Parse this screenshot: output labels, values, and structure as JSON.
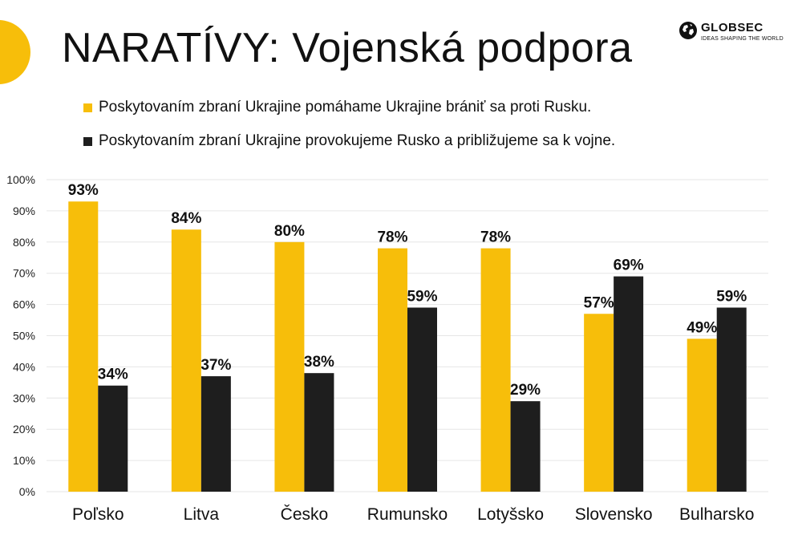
{
  "title": "NARATÍVY: Vojenská podpora",
  "logo": {
    "brand": "GLOBSEC",
    "tagline": "IDEAS SHAPING THE WORLD",
    "icon": "globe-icon"
  },
  "colors": {
    "yellow": "#F7BE0A",
    "black": "#1E1E1E",
    "grid": "#E6E6E6"
  },
  "chart_data": {
    "type": "bar",
    "categories": [
      "Poľsko",
      "Litva",
      "Česko",
      "Rumunsko",
      "Lotyšsko",
      "Slovensko",
      "Bulharsko"
    ],
    "series": [
      {
        "name": "Poskytovaním zbraní Ukrajine pomáhame Ukrajine brániť sa proti Rusku.",
        "values": [
          93,
          84,
          80,
          78,
          78,
          57,
          49
        ],
        "color": "#F7BE0A"
      },
      {
        "name": "Poskytovaním zbraní Ukrajine provokujeme Rusko a približujeme sa k vojne.",
        "values": [
          34,
          37,
          38,
          59,
          29,
          69,
          59
        ],
        "color": "#1E1E1E"
      }
    ],
    "value_suffix": "%",
    "ylim": [
      0,
      100
    ],
    "yticks": [
      "0%",
      "10%",
      "20%",
      "30%",
      "40%",
      "50%",
      "60%",
      "70%",
      "80%",
      "90%",
      "100%"
    ],
    "grid": true,
    "legend_position": "top"
  }
}
